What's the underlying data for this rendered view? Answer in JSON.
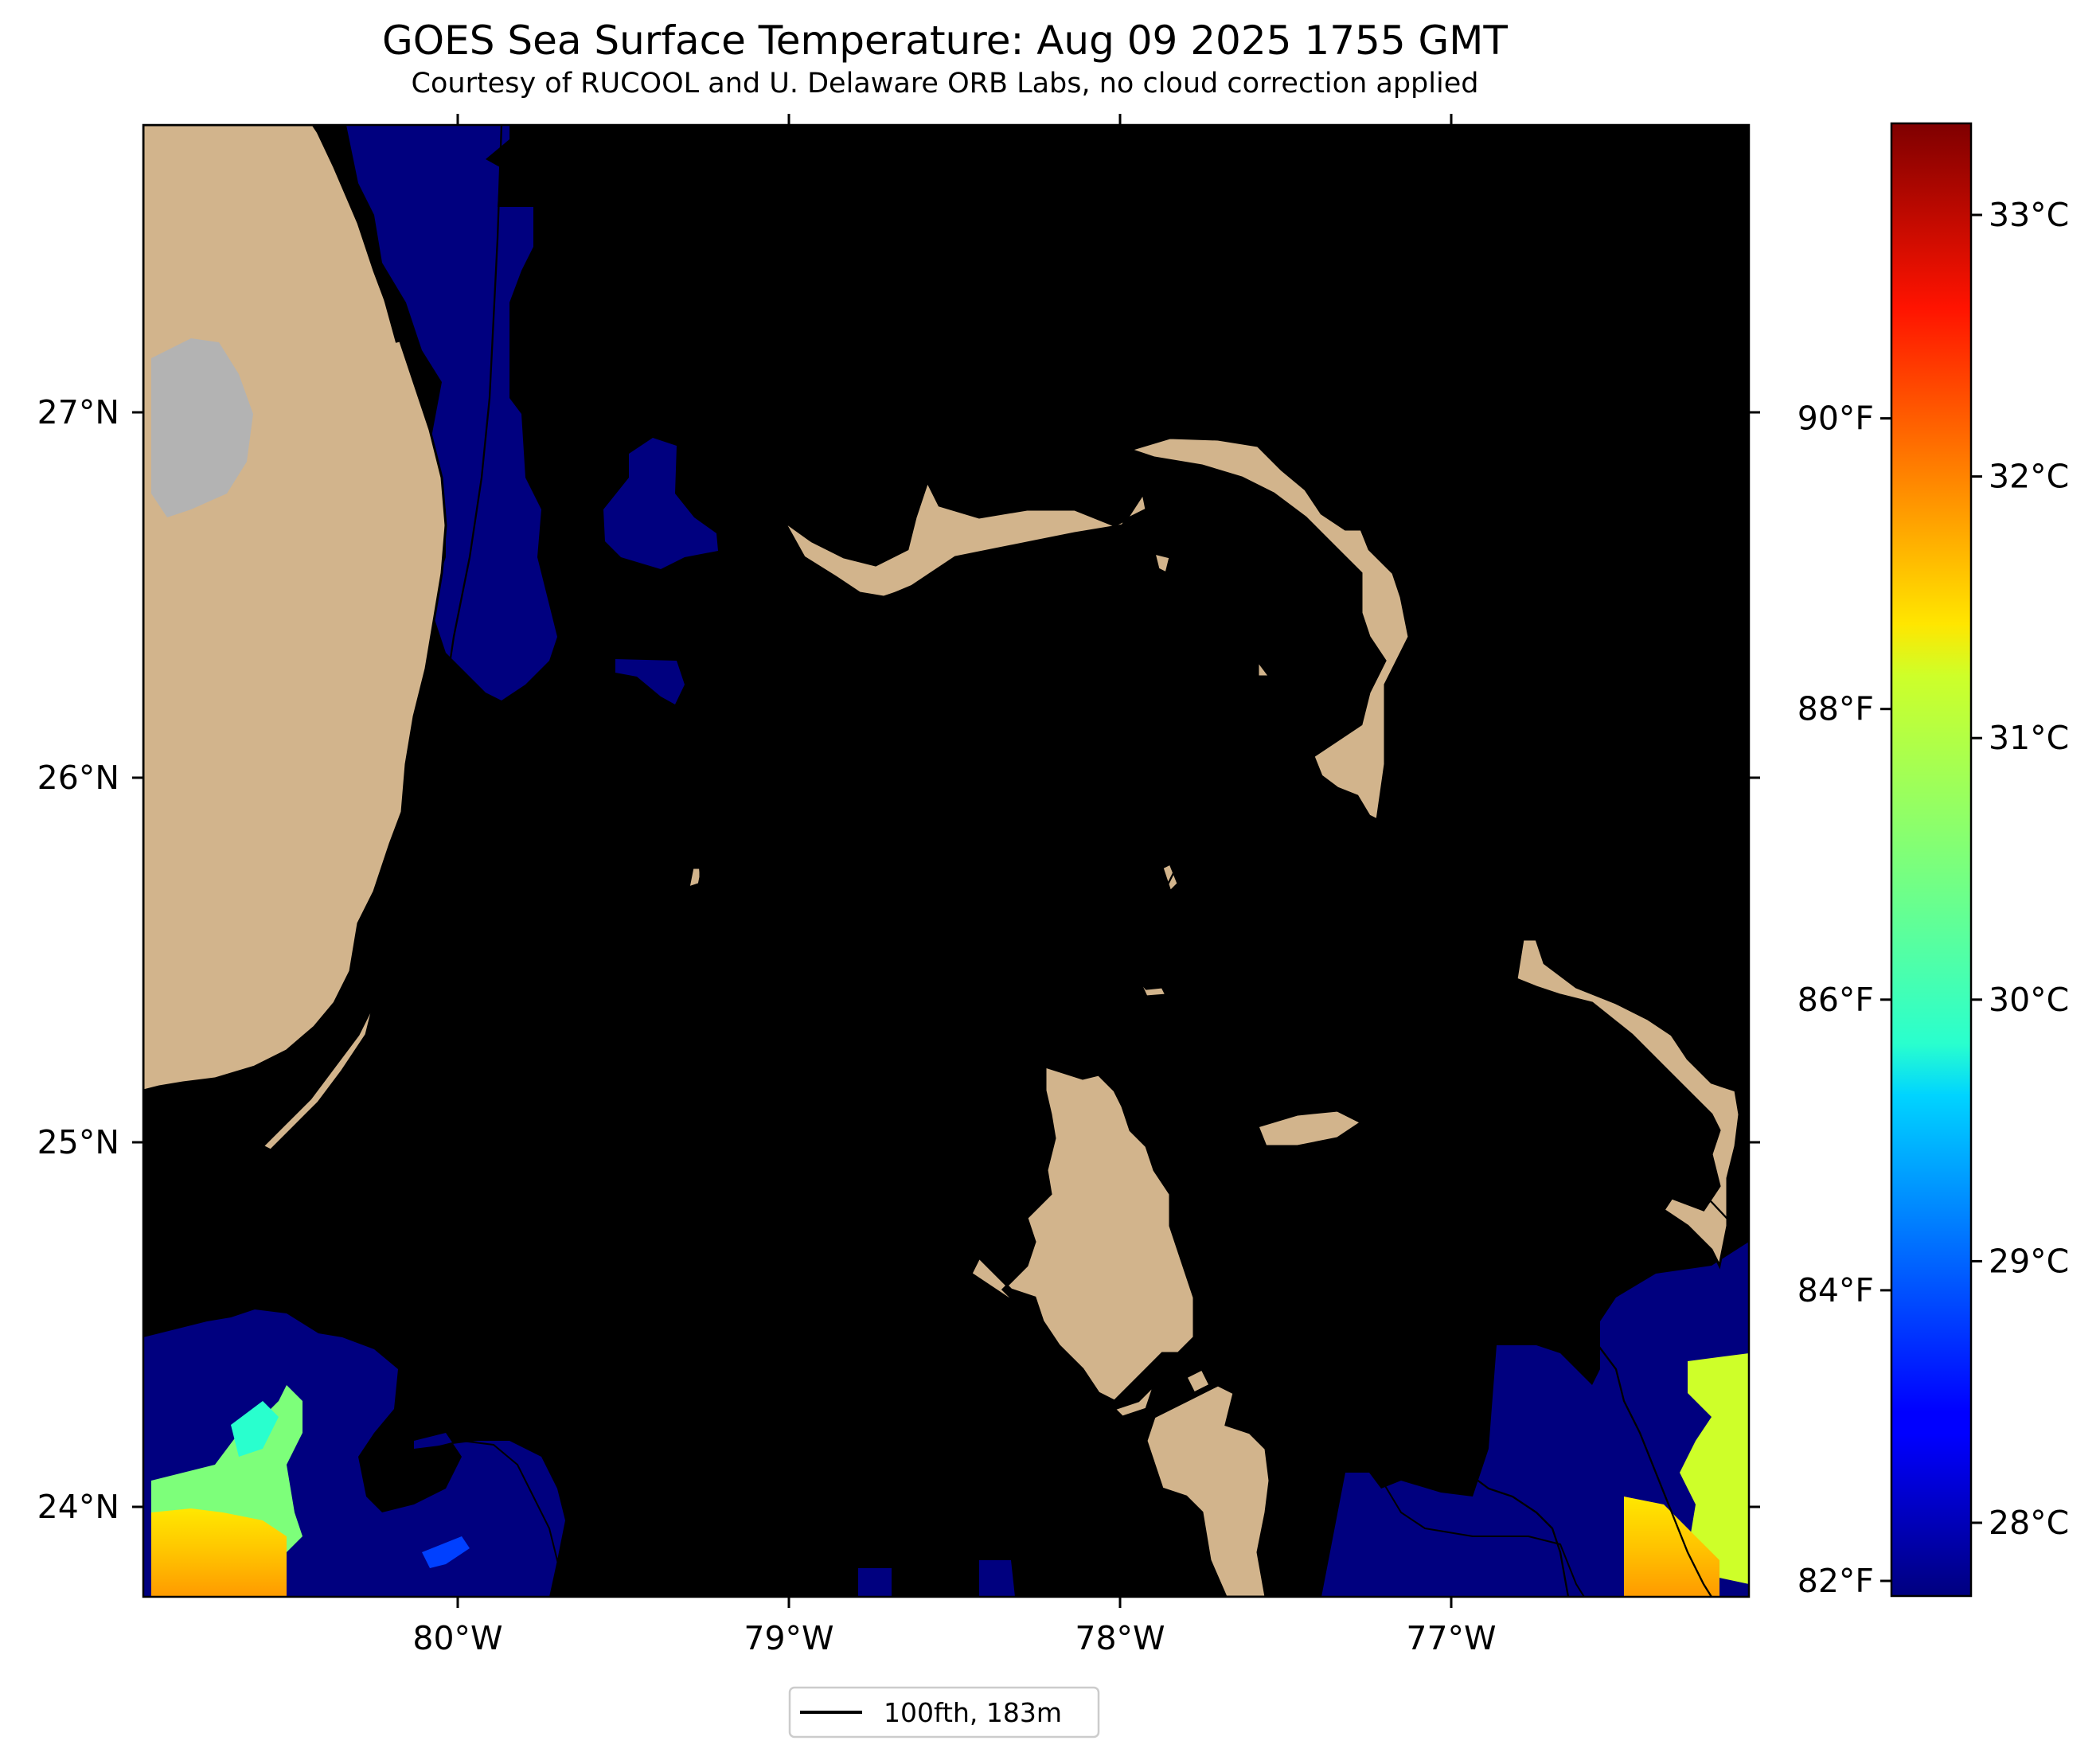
{
  "title": "GOES Sea Surface Temperature: Aug 09 2025 1755 GMT",
  "subtitle": "Courtesy of RUCOOL and U. Delaware ORB Labs, no cloud correction applied",
  "map": {
    "lon_range": [
      -80.95,
      -76.1
    ],
    "lat_range": [
      23.75,
      27.78
    ],
    "longitude_labels": [
      "80°W",
      "79°W",
      "78°W",
      "77°W"
    ],
    "latitude_labels": [
      "27°N",
      "26°N",
      "25°N",
      "24°N"
    ],
    "colors": {
      "land": "#d2b48c",
      "cloud_cold": "#00007f",
      "lake": "#b3b3b3",
      "water": "#ffffff",
      "coast": "#000000"
    }
  },
  "colorbar": {
    "celsius_labels": [
      "33°C",
      "32°C",
      "31°C",
      "30°C",
      "29°C",
      "28°C"
    ],
    "fahrenheit_labels": [
      "90°F",
      "88°F",
      "86°F",
      "84°F",
      "82°F"
    ],
    "celsius_values": [
      33,
      32,
      31,
      30,
      29,
      28
    ],
    "fahrenheit_values": [
      90,
      88,
      86,
      84,
      82
    ],
    "range_c": [
      27.72,
      33.35
    ],
    "colormap": "jet"
  },
  "legend": {
    "label": "100fth, 183m"
  }
}
